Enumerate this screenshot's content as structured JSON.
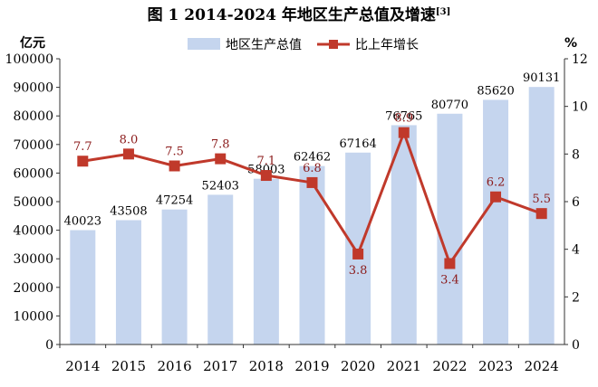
{
  "chart_data": {
    "title": "图 1   2014-2024 年地区生产总值及增速",
    "title_footnote": "[3]",
    "type": "bar",
    "categories": [
      "2014",
      "2015",
      "2016",
      "2017",
      "2018",
      "2019",
      "2020",
      "2021",
      "2022",
      "2023",
      "2024"
    ],
    "series": [
      {
        "name": "地区生产总值",
        "type": "bar",
        "axis": "left",
        "color": "#c5d5ee",
        "values": [
          40023,
          43508,
          47254,
          52403,
          58003,
          62462,
          67164,
          76765,
          80770,
          85620,
          90131
        ]
      },
      {
        "name": "比上年增长",
        "type": "line",
        "axis": "right",
        "color": "#c0392b",
        "label_color": "#8b1a1a",
        "values": [
          7.7,
          8.0,
          7.5,
          7.8,
          7.1,
          6.8,
          3.8,
          8.9,
          3.4,
          6.2,
          5.5
        ]
      }
    ],
    "ylabel_left": "亿元",
    "ylabel_right": "%",
    "ylim_left": [
      0,
      100000
    ],
    "yticks_left": [
      0,
      10000,
      20000,
      30000,
      40000,
      50000,
      60000,
      70000,
      80000,
      90000,
      100000
    ],
    "ylim_right": [
      0,
      12
    ],
    "yticks_right": [
      0,
      2,
      4,
      6,
      8,
      10,
      12
    ],
    "grid": false,
    "legend_position": "top-center"
  }
}
